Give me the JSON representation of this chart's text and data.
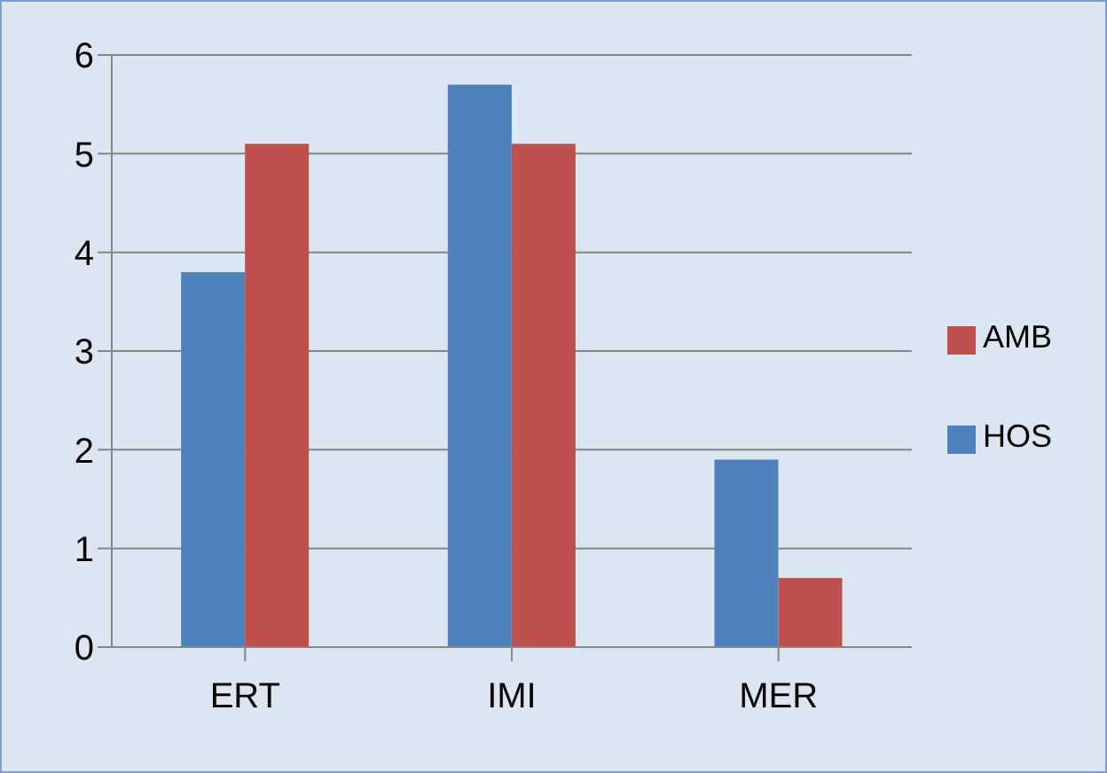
{
  "chart_data": {
    "type": "bar",
    "categories": [
      "ERT",
      "IMI",
      "MER"
    ],
    "series": [
      {
        "name": "HOS",
        "color": "#4f81bd",
        "values": [
          3.8,
          5.7,
          1.9
        ]
      },
      {
        "name": "AMB",
        "color": "#c0504d",
        "values": [
          5.1,
          5.1,
          0.7
        ]
      }
    ],
    "ylim": [
      0,
      6
    ],
    "yticks": [
      0,
      1,
      2,
      3,
      4,
      5,
      6
    ],
    "grid": "y",
    "legend": "right"
  }
}
